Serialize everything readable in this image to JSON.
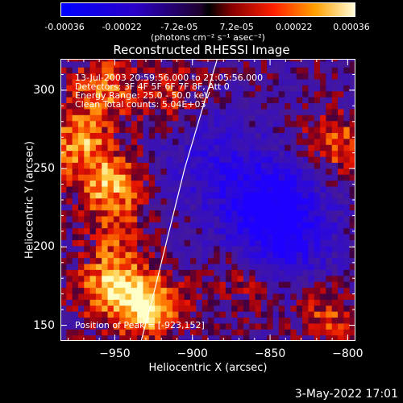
{
  "colorbar": {
    "tick_labels": [
      "-0.00036",
      "-0.00022",
      "-7.2e-05",
      "7.2e-05",
      "0.00022",
      "0.00036"
    ],
    "units": "(photons cm⁻² s⁻¹ asec⁻²)",
    "range": [
      -0.00036,
      0.00036
    ]
  },
  "chart_data": {
    "type": "heatmap",
    "title": "Reconstructed RHESSI Image",
    "xlabel": "Heliocentric X (arcsec)",
    "ylabel": "Heliocentric Y (arcsec)",
    "xlim": [
      -985,
      -795
    ],
    "ylim": [
      140,
      320
    ],
    "x_ticks": [
      {
        "value": -950,
        "label": "−950"
      },
      {
        "value": -900,
        "label": "−900"
      },
      {
        "value": -850,
        "label": "−850"
      },
      {
        "value": -800,
        "label": "−800"
      }
    ],
    "y_ticks": [
      {
        "value": 150,
        "label": "150"
      },
      {
        "value": 200,
        "label": "200"
      },
      {
        "value": 250,
        "label": "250"
      },
      {
        "value": 300,
        "label": "300"
      }
    ],
    "annotations": [
      "13-Jul-2003 20:59:56.000 to 21:05:56.000",
      "Detectors: 3F 4F 5F 6F 7F 8F, Att 0",
      "Energy Range: 25.0 - 50.0 keV",
      "Clean     Total counts: 5.04E+03"
    ],
    "peak_label": "Position of Peak = [-923,152]",
    "peak": [
      -923,
      152
    ],
    "limb_curve": [
      [
        -933,
        140
      ],
      [
        -925,
        170
      ],
      [
        -915,
        210
      ],
      [
        -905,
        250
      ],
      [
        -893,
        290
      ],
      [
        -884,
        320
      ]
    ],
    "hotspots": [
      {
        "x": -930,
        "y": 160,
        "strength": 1.0
      },
      {
        "x": -955,
        "y": 172,
        "strength": 0.8
      },
      {
        "x": -955,
        "y": 238,
        "strength": 0.75
      },
      {
        "x": -975,
        "y": 265,
        "strength": 0.7
      },
      {
        "x": -960,
        "y": 300,
        "strength": 0.6
      },
      {
        "x": -915,
        "y": 295,
        "strength": 0.45
      },
      {
        "x": -810,
        "y": 265,
        "strength": 0.55
      },
      {
        "x": -815,
        "y": 155,
        "strength": 0.45
      },
      {
        "x": -868,
        "y": 178,
        "strength": 0.35
      },
      {
        "x": -950,
        "y": 205,
        "strength": 0.4
      }
    ],
    "coldspots": [
      {
        "x": -855,
        "y": 225,
        "strength": 0.8
      },
      {
        "x": -840,
        "y": 205,
        "strength": 0.6
      },
      {
        "x": -890,
        "y": 255,
        "strength": 0.45
      }
    ]
  },
  "footer": {
    "date": "3-May-2022 17:01"
  }
}
